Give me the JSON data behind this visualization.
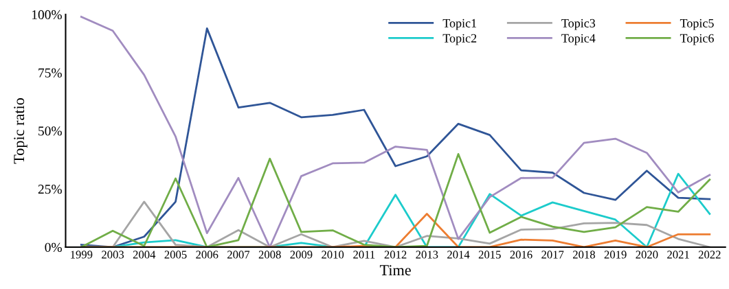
{
  "chart_data": {
    "type": "line",
    "xlabel": "Time",
    "ylabel": "Topic ratio",
    "categories": [
      "1999",
      "2003",
      "2004",
      "2005",
      "2006",
      "2007",
      "2008",
      "2009",
      "2010",
      "2011",
      "2012",
      "2013",
      "2014",
      "2015",
      "2016",
      "2017",
      "2018",
      "2019",
      "2020",
      "2021",
      "2022"
    ],
    "ylim": [
      0,
      100
    ],
    "yticks": [
      {
        "value": 0,
        "label": "0%"
      },
      {
        "value": 25,
        "label": "25%"
      },
      {
        "value": 50,
        "label": "50%"
      },
      {
        "value": 75,
        "label": "75%"
      },
      {
        "value": 100,
        "label": "100%"
      }
    ],
    "grid": false,
    "legend": "top right",
    "marker": "none",
    "line_style": "solid",
    "series": [
      {
        "name": "Topic1",
        "color": "#2f5597",
        "values": [
          1,
          0,
          4.5,
          19.5,
          94,
          60,
          62,
          55.8,
          56.8,
          59,
          34.8,
          39,
          53,
          48.2,
          33,
          32,
          23.3,
          20.3,
          32.8,
          21.2,
          20.6
        ]
      },
      {
        "name": "Topic2",
        "color": "#1ccbcb",
        "values": [
          0,
          0,
          2,
          3,
          0,
          0,
          0,
          1.8,
          0,
          0,
          22.5,
          0,
          0,
          22.8,
          13.5,
          19.2,
          15.5,
          11.8,
          0,
          31.5,
          14.3
        ]
      },
      {
        "name": "Topic3",
        "color": "#a5a5a5",
        "values": [
          0,
          0,
          19.5,
          1,
          0,
          7.3,
          0,
          5.5,
          0,
          2.7,
          0,
          4.8,
          3.7,
          1.5,
          7.5,
          7.8,
          10.2,
          10.4,
          9.5,
          3.5,
          0
        ]
      },
      {
        "name": "Topic4",
        "color": "#a18cc0",
        "values": [
          99,
          93,
          74,
          47.5,
          6,
          29.7,
          0,
          30.5,
          36,
          36.3,
          43.2,
          41.8,
          3.5,
          21.5,
          29.7,
          29.8,
          44.8,
          46.6,
          40.5,
          23.5,
          31
        ]
      },
      {
        "name": "Topic5",
        "color": "#ed7d31",
        "values": [
          0,
          0,
          0,
          0,
          0,
          0,
          0,
          0,
          0,
          0.5,
          0,
          14.3,
          0,
          0,
          3.2,
          2.8,
          0,
          2.8,
          0,
          5.5,
          5.5
        ]
      },
      {
        "name": "Topic6",
        "color": "#70ad47",
        "values": [
          0,
          7,
          0.5,
          29.5,
          0,
          3,
          38,
          6.5,
          7.2,
          1,
          0,
          0.5,
          40,
          6.2,
          13,
          8.8,
          6.5,
          8.5,
          17.2,
          15.2,
          29
        ]
      }
    ]
  }
}
